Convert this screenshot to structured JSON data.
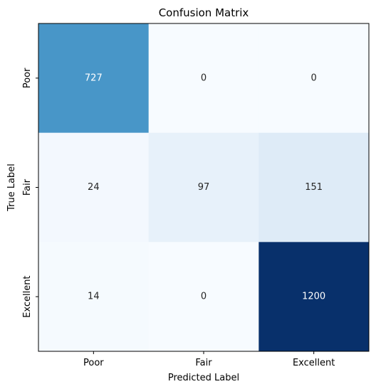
{
  "chart_data": {
    "type": "heatmap",
    "title": "Confusion Matrix",
    "xlabel": "Predicted Label",
    "ylabel": "True Label",
    "x_categories": [
      "Poor",
      "Fair",
      "Excellent"
    ],
    "y_categories": [
      "Poor",
      "Fair",
      "Excellent"
    ],
    "values": [
      [
        727,
        0,
        0
      ],
      [
        24,
        97,
        151
      ],
      [
        14,
        0,
        1200
      ]
    ],
    "colormap": "Blues",
    "value_range": [
      0,
      1200
    ],
    "colorbar": false,
    "grid": false
  }
}
